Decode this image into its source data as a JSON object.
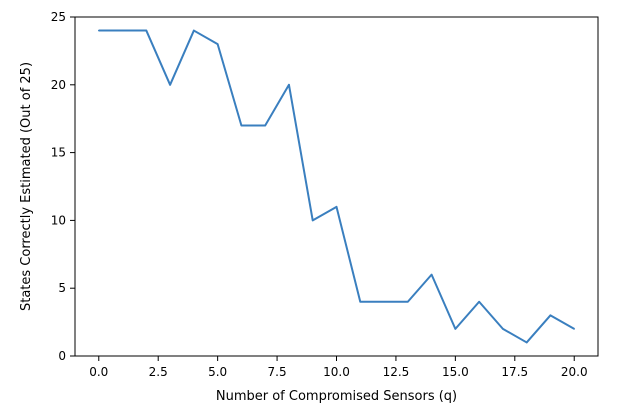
{
  "chart_data": {
    "type": "line",
    "title": "",
    "xlabel": "Number of Compromised Sensors (q)",
    "ylabel": "States Correctly Estimated (Out of 25)",
    "xlim": [
      -1,
      21
    ],
    "ylim": [
      0,
      25
    ],
    "grid": false,
    "legend": "none",
    "x_ticks": [
      0.0,
      2.5,
      5.0,
      7.5,
      10.0,
      12.5,
      15.0,
      17.5,
      20.0
    ],
    "x_tick_labels": [
      "0.0",
      "2.5",
      "5.0",
      "7.5",
      "10.0",
      "12.5",
      "15.0",
      "17.5",
      "20.0"
    ],
    "y_ticks": [
      0,
      5,
      10,
      15,
      20,
      25
    ],
    "y_tick_labels": [
      "0",
      "5",
      "10",
      "15",
      "20",
      "25"
    ],
    "series": [
      {
        "color": "#3a7fbf",
        "x": [
          0,
          1,
          2,
          3,
          4,
          5,
          6,
          7,
          8,
          9,
          10,
          11,
          12,
          13,
          14,
          15,
          16,
          17,
          18,
          19,
          20
        ],
        "values": [
          24,
          24,
          24,
          20,
          24,
          23,
          17,
          17,
          20,
          10,
          11,
          4,
          4,
          4,
          6,
          2,
          4,
          2,
          1,
          3,
          2
        ]
      }
    ]
  }
}
